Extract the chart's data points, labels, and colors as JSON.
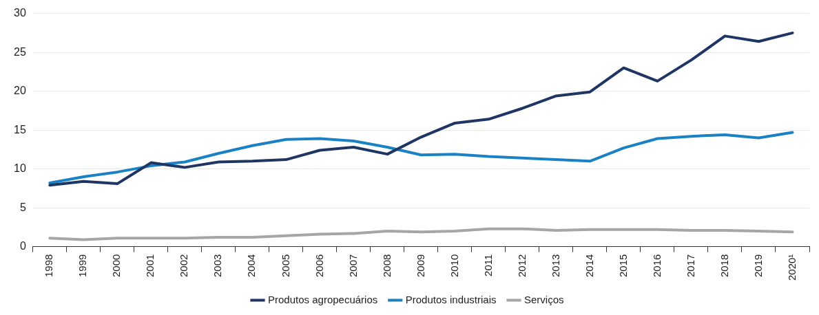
{
  "chart_data": {
    "type": "line",
    "categories": [
      "1998",
      "1999",
      "2000",
      "2001",
      "2002",
      "2003",
      "2004",
      "2005",
      "2006",
      "2007",
      "2008",
      "2009",
      "2010",
      "2011",
      "2012",
      "2013",
      "2014",
      "2015",
      "2016",
      "2017",
      "2018",
      "2019",
      "2020¹"
    ],
    "series": [
      {
        "name": "Produtos agropecuários",
        "color": "#1f3564",
        "values": [
          7.9,
          8.4,
          8.1,
          10.8,
          10.2,
          10.9,
          11.0,
          11.2,
          12.4,
          12.8,
          11.9,
          14.1,
          15.9,
          16.4,
          17.8,
          19.4,
          19.9,
          23.0,
          21.3,
          24.0,
          27.1,
          26.4,
          27.5
        ]
      },
      {
        "name": "Produtos industriais",
        "color": "#1a82c4",
        "values": [
          8.2,
          9.0,
          9.6,
          10.4,
          10.9,
          12.0,
          13.0,
          13.8,
          13.9,
          13.6,
          12.8,
          11.8,
          11.9,
          11.6,
          11.4,
          11.2,
          11.0,
          12.7,
          13.9,
          14.2,
          14.4,
          14.0,
          14.7
        ]
      },
      {
        "name": "Serviços",
        "color": "#a6a6a6",
        "values": [
          1.1,
          0.9,
          1.1,
          1.1,
          1.1,
          1.2,
          1.2,
          1.4,
          1.6,
          1.7,
          2.0,
          1.9,
          2.0,
          2.3,
          2.3,
          2.1,
          2.2,
          2.2,
          2.2,
          2.1,
          2.1,
          2.0,
          1.9
        ]
      }
    ],
    "ylim": [
      0,
      30
    ],
    "yticks": [
      0,
      5,
      10,
      15,
      20,
      25,
      30
    ],
    "grid": "y",
    "legend": "bottom",
    "marker": "none",
    "line_style": "solid"
  }
}
